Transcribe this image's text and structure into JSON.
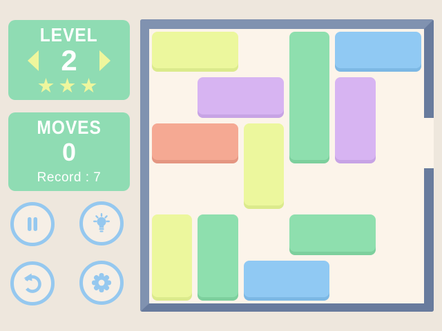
{
  "level_panel": {
    "title": "LEVEL",
    "value": "2",
    "stars": "★★★"
  },
  "moves_panel": {
    "title": "MOVES",
    "value": "0",
    "record": "Record : 7"
  },
  "controls": {
    "pause": "pause",
    "hint": "hint",
    "restart": "restart",
    "settings": "settings"
  },
  "colors": {
    "page_bg": "#eee7dd",
    "board_bg": "#fcf4ea",
    "wall_light": "#8092b0",
    "wall_dark": "#687b9d",
    "panel_bg": "#8fdcb3",
    "panel_text": "#ffffff",
    "accent_yellow": "#eef69d",
    "button_blue": "#95c8ef",
    "button_bg": "#f6efe6",
    "blocks": {
      "yellow": {
        "fill": "#ecf79d",
        "shade": "#dbea8c"
      },
      "green": {
        "fill": "#8edfae",
        "shade": "#7dcf9d"
      },
      "blue": {
        "fill": "#90c9f3",
        "shade": "#7cb8e4"
      },
      "purple": {
        "fill": "#d7b4f2",
        "shade": "#c7a3e5"
      },
      "salmon": {
        "fill": "#f5a993",
        "shade": "#e49682"
      }
    }
  },
  "board": {
    "rows": 6,
    "cols": 6,
    "exit": {
      "side": "right",
      "row": 2
    },
    "blocks": [
      {
        "color": "yellow",
        "row": 0,
        "col": 0,
        "len": 2,
        "dir": "h"
      },
      {
        "color": "green",
        "row": 0,
        "col": 3,
        "len": 3,
        "dir": "v"
      },
      {
        "color": "blue",
        "row": 0,
        "col": 4,
        "len": 2,
        "dir": "h"
      },
      {
        "color": "purple",
        "row": 1,
        "col": 1,
        "len": 2,
        "dir": "h"
      },
      {
        "color": "purple",
        "row": 1,
        "col": 4,
        "len": 2,
        "dir": "v"
      },
      {
        "color": "salmon",
        "row": 2,
        "col": 0,
        "len": 2,
        "dir": "h"
      },
      {
        "color": "yellow",
        "row": 2,
        "col": 2,
        "len": 2,
        "dir": "v"
      },
      {
        "color": "yellow",
        "row": 4,
        "col": 0,
        "len": 2,
        "dir": "v"
      },
      {
        "color": "green",
        "row": 4,
        "col": 1,
        "len": 2,
        "dir": "v"
      },
      {
        "color": "green",
        "row": 4,
        "col": 3,
        "len": 2,
        "dir": "h"
      },
      {
        "color": "blue",
        "row": 5,
        "col": 2,
        "len": 2,
        "dir": "h"
      }
    ]
  }
}
